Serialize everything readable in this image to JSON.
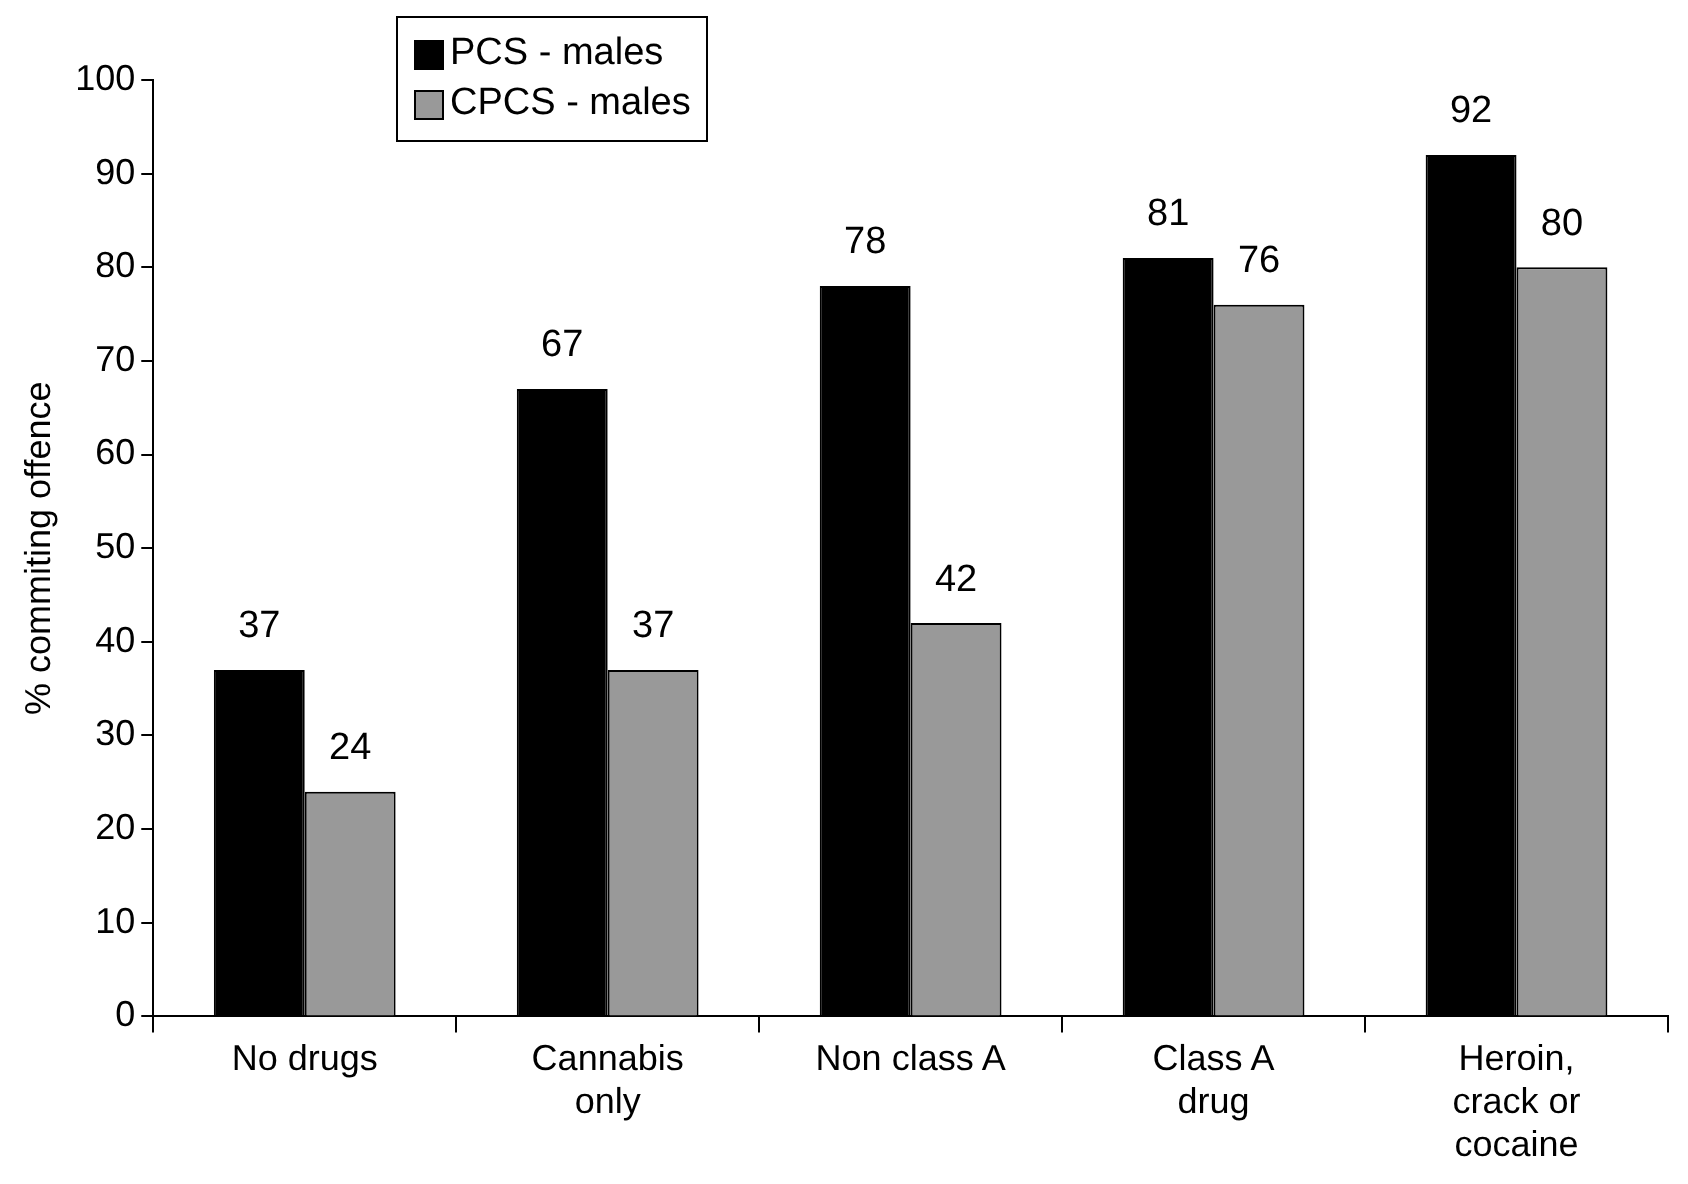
{
  "chart_data": {
    "type": "bar",
    "ylabel": "% commiting offence",
    "categories": [
      "No drugs",
      "Cannabis\nonly",
      "Non class A",
      "Class A\ndrug",
      "Heroin,\ncrack or\ncocaine"
    ],
    "series": [
      {
        "name": "PCS - males",
        "color": "#000000",
        "values": [
          37,
          67,
          78,
          81,
          92
        ]
      },
      {
        "name": "CPCS - males",
        "color": "#999999",
        "values": [
          24,
          37,
          42,
          76,
          80
        ]
      }
    ],
    "ylim": [
      0,
      100
    ],
    "yticks": [
      0,
      10,
      20,
      30,
      40,
      50,
      60,
      70,
      80,
      90,
      100
    ],
    "grid": false,
    "legend": "top left",
    "data_labels": true
  }
}
